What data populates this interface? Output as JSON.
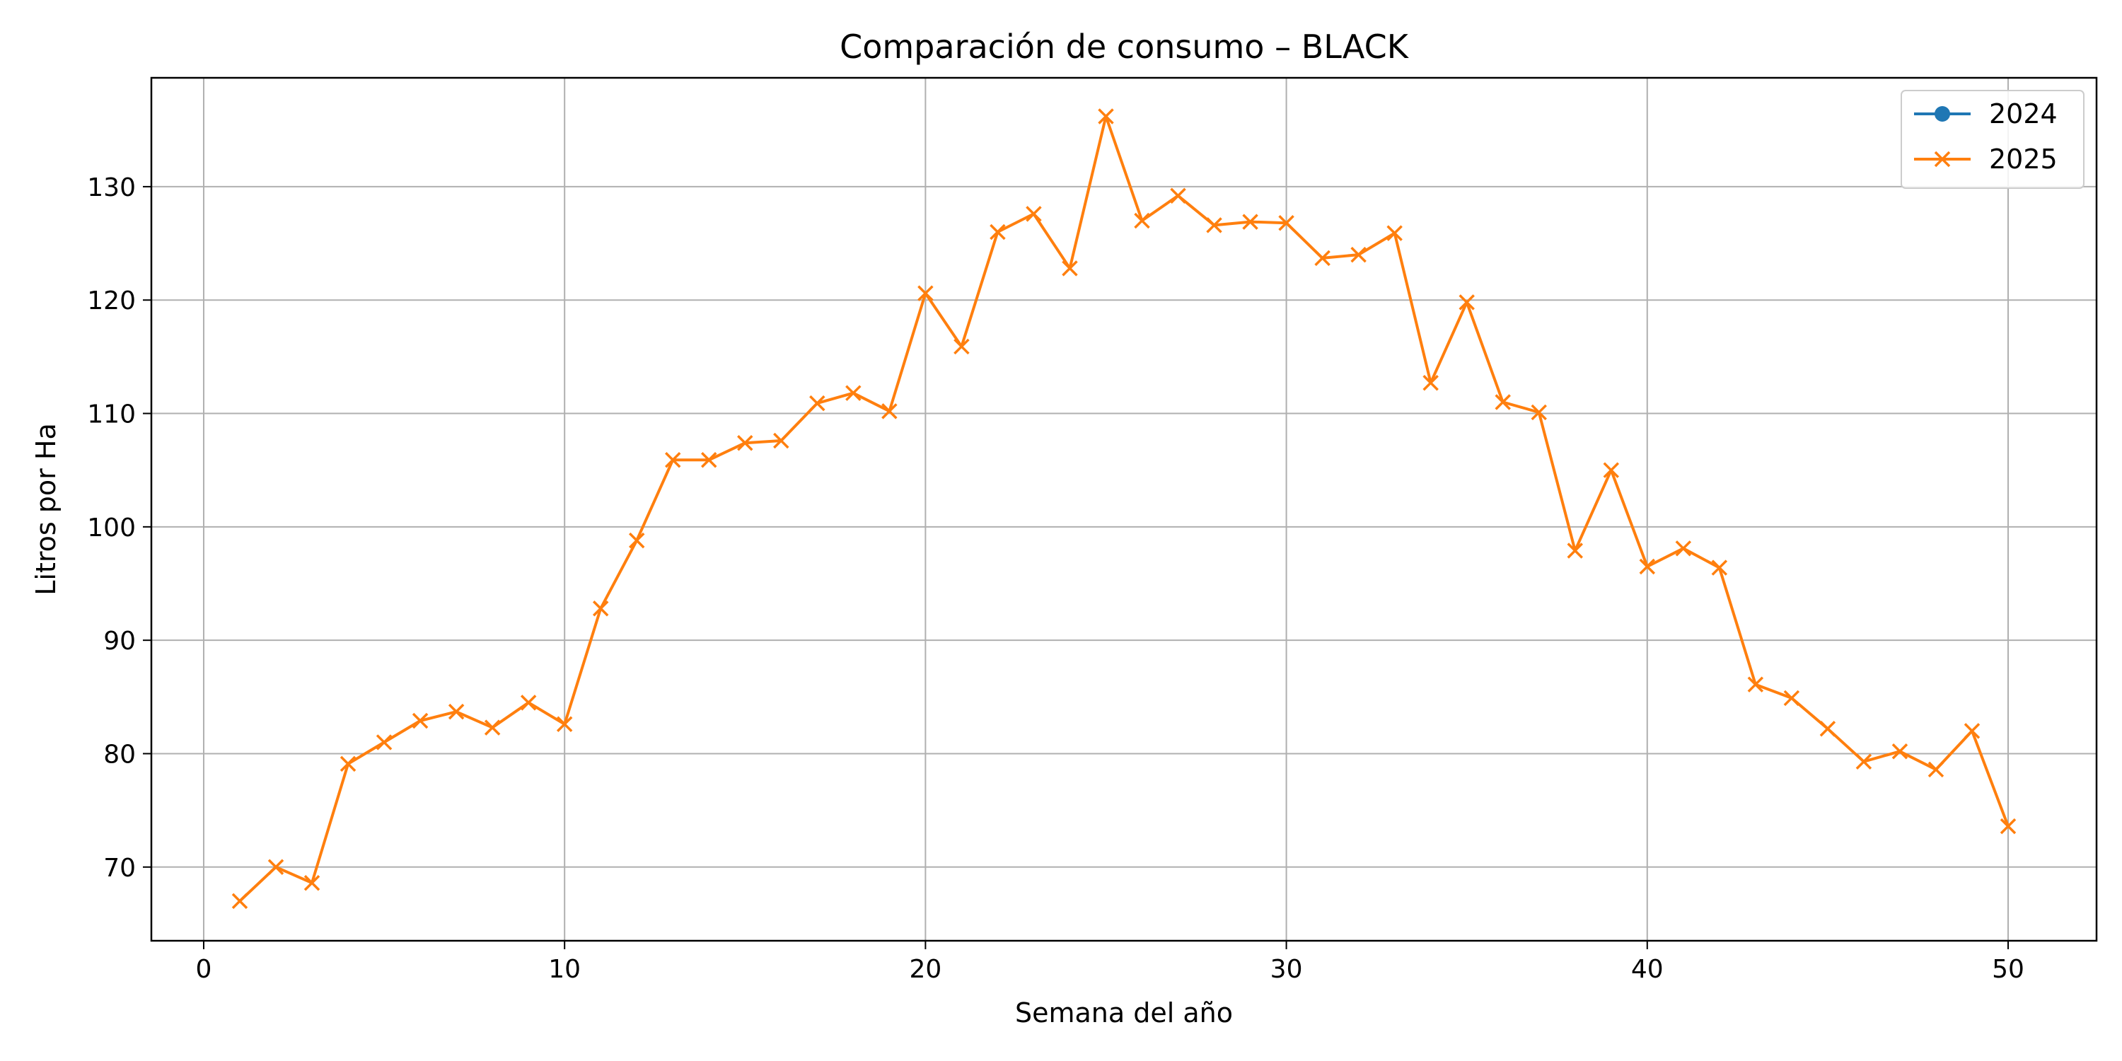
{
  "chart_data": {
    "type": "line",
    "title": "Comparación de consumo – BLACK",
    "xlabel": "Semana del año",
    "ylabel": "Litros por Ha",
    "xlim": [
      -1.45,
      52.45
    ],
    "ylim": [
      63.5,
      139.6
    ],
    "xticks": [
      0,
      10,
      20,
      30,
      40,
      50
    ],
    "yticks": [
      70,
      80,
      90,
      100,
      110,
      120,
      130
    ],
    "grid": true,
    "legend_position": "top-right",
    "series": [
      {
        "name": "2024",
        "color": "#1f77b4",
        "marker": "circle",
        "x": [],
        "y": []
      },
      {
        "name": "2025",
        "color": "#ff7f0e",
        "marker": "x",
        "x": [
          1,
          2,
          3,
          4,
          5,
          6,
          7,
          8,
          9,
          10,
          11,
          12,
          13,
          14,
          15,
          16,
          17,
          18,
          19,
          20,
          21,
          22,
          23,
          24,
          25,
          26,
          27,
          28,
          29,
          30,
          31,
          32,
          33,
          34,
          35,
          36,
          37,
          38,
          39,
          40,
          41,
          42,
          43,
          44,
          45,
          46,
          47,
          48,
          49,
          50
        ],
        "y": [
          67.0,
          70.0,
          68.6,
          79.1,
          81.0,
          82.9,
          83.7,
          82.3,
          84.5,
          82.6,
          92.8,
          98.8,
          105.9,
          105.9,
          107.4,
          107.6,
          110.9,
          111.8,
          110.2,
          120.6,
          115.9,
          126.0,
          127.6,
          122.8,
          136.2,
          127.0,
          129.2,
          126.6,
          126.9,
          126.8,
          123.7,
          124.0,
          125.9,
          112.7,
          119.8,
          111.0,
          110.1,
          97.9,
          105.0,
          96.5,
          98.1,
          96.4,
          86.1,
          84.9,
          82.2,
          79.3,
          80.2,
          78.6,
          82.0,
          73.6
        ]
      }
    ]
  }
}
